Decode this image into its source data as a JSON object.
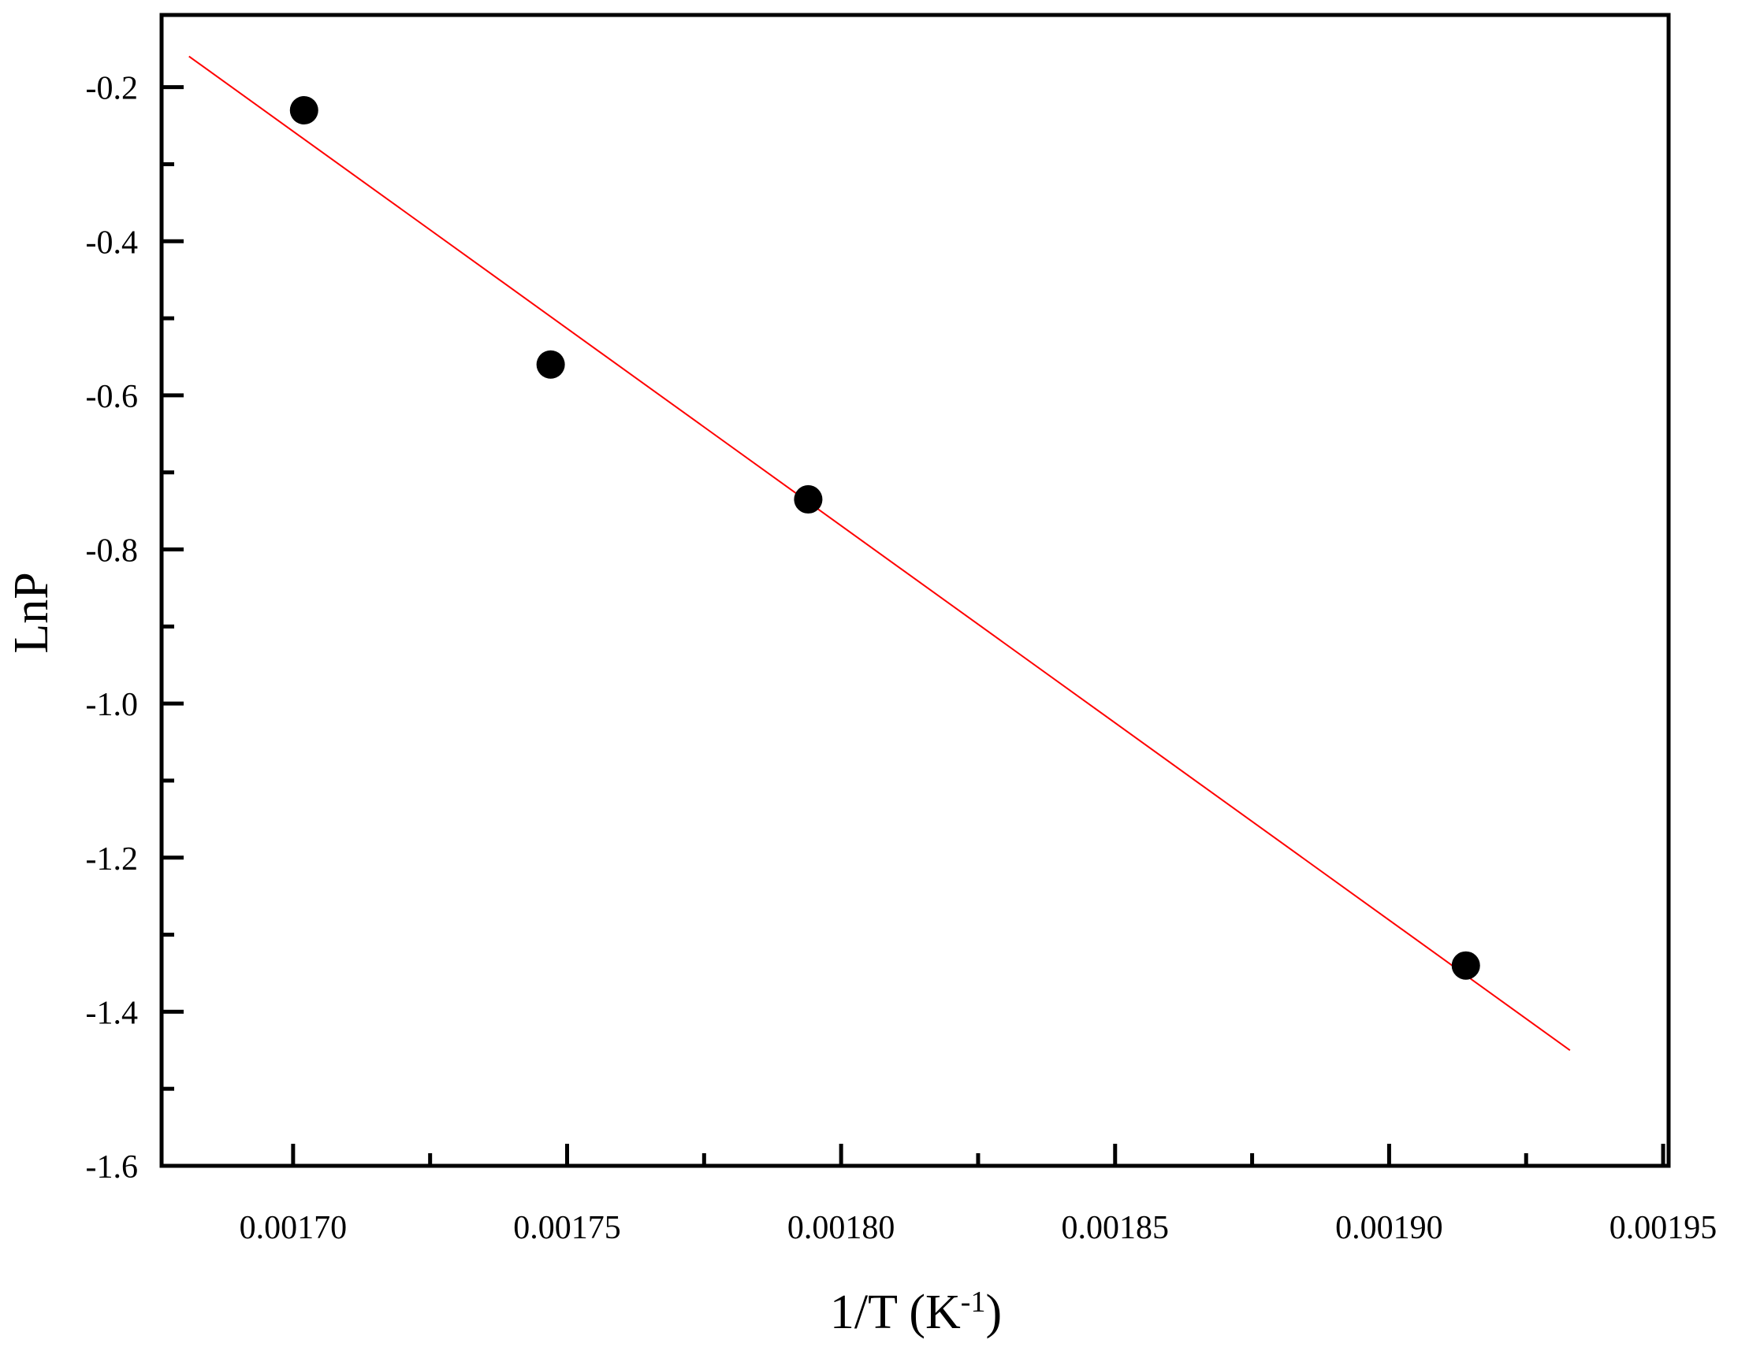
{
  "chart_data": {
    "type": "scatter",
    "xlabel": "1/T (K",
    "xlabel_superscript": "-1",
    "xlabel_close": ")",
    "ylabel": "LnP",
    "xlim": [
      0.001676,
      0.001951
    ],
    "ylim": [
      -1.6,
      -0.1063
    ],
    "x_ticks": [
      0.0017,
      0.00175,
      0.0018,
      0.00185,
      0.0019,
      0.00195
    ],
    "x_tick_labels": [
      "0.00170",
      "0.00175",
      "0.00180",
      "0.00185",
      "0.00190",
      "0.00195"
    ],
    "y_ticks": [
      -0.2,
      -0.4,
      -0.6,
      -0.8,
      -1.0,
      -1.2,
      -1.4,
      -1.6
    ],
    "y_tick_labels": [
      "-0.2",
      "-0.4",
      "-0.6",
      "-0.8",
      "-1.0",
      "-1.2",
      "-1.4",
      "-1.6"
    ],
    "grid": false,
    "series": [
      {
        "kind": "scatter",
        "color": "#000000",
        "x": [
          0.001702,
          0.001747,
          0.001794,
          0.001914
        ],
        "y": [
          -0.23,
          -0.56,
          -0.735,
          -1.34
        ]
      },
      {
        "kind": "fit-line",
        "color": "#ff0000",
        "x": [
          0.001681,
          0.001933
        ],
        "y": [
          -0.16,
          -1.45
        ]
      }
    ]
  }
}
